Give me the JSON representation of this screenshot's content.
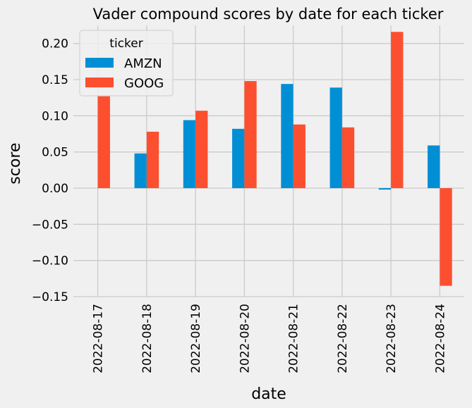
{
  "chart_data": {
    "type": "bar",
    "title": "Vader compound scores by date for each ticker",
    "xlabel": "date",
    "ylabel": "score",
    "categories": [
      "2022-08-17",
      "2022-08-18",
      "2022-08-19",
      "2022-08-20",
      "2022-08-21",
      "2022-08-22",
      "2022-08-23",
      "2022-08-24"
    ],
    "series": [
      {
        "name": "AMZN",
        "color": "#008fd5",
        "values": [
          null,
          0.048,
          0.094,
          0.082,
          0.144,
          0.139,
          -0.002,
          0.059
        ]
      },
      {
        "name": "GOOG",
        "color": "#fc4f30",
        "values": [
          0.127,
          0.078,
          0.107,
          0.148,
          0.088,
          0.084,
          0.216,
          -0.135
        ]
      }
    ],
    "ylim": [
      -0.15,
      0.225
    ],
    "yticks": [
      "−0.15",
      "−0.10",
      "−0.05",
      "0.00",
      "0.05",
      "0.10",
      "0.15",
      "0.20"
    ],
    "legend": {
      "title": "ticker",
      "position": "upper-left"
    },
    "grid": true,
    "colors": {
      "background": "#f0f0f0",
      "grid": "#cbcbcb"
    }
  }
}
